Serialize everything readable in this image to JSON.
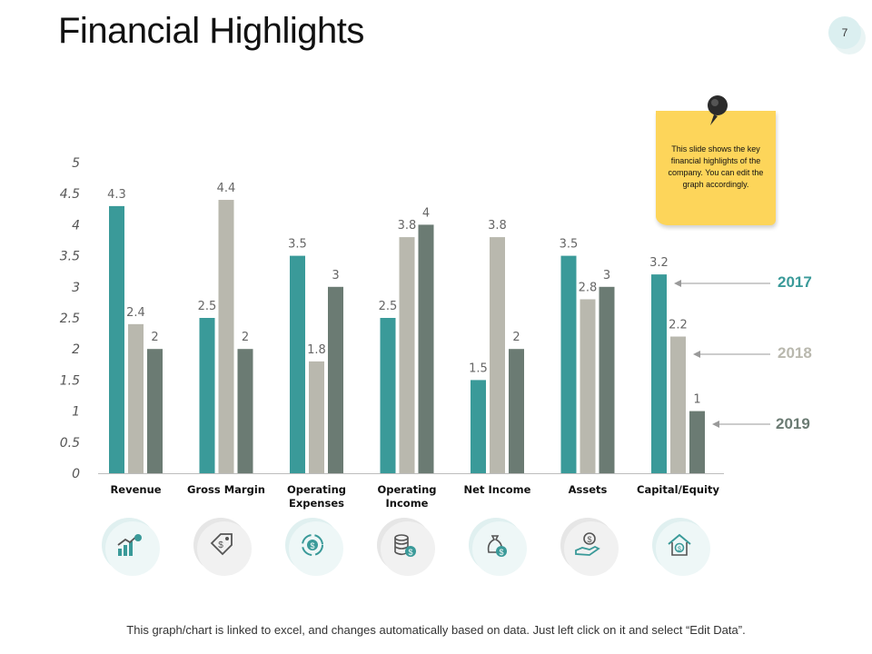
{
  "slide": {
    "title": "Financial Highlights",
    "page_number": "7",
    "footer": "This graph/chart is linked to excel, and changes automatically based on data. Just left click on it and select “Edit Data”.",
    "note": "This slide shows the key financial highlights of the company. You can edit the graph accordingly.",
    "year_labels": [
      "2017",
      "2018",
      "2019"
    ]
  },
  "colors": {
    "series_2017": "#3a9a99",
    "series_2018": "#b9b8ae",
    "series_2019": "#6b7b73",
    "axis_text": "#555555",
    "value_text": "#666666",
    "icon_circle_teal": "#e0f0f0",
    "icon_circle_gray": "#e6e6e6"
  },
  "icons": [
    "growth-chart-icon",
    "price-tag-icon",
    "cycle-dollar-icon",
    "coin-stack-icon",
    "money-bag-icon",
    "hand-dollar-icon",
    "house-dollar-icon"
  ],
  "chart_data": {
    "type": "bar",
    "categories": [
      "Revenue",
      "Gross Margin",
      "Operating Expenses",
      "Operating Income",
      "Net Income",
      "Assets",
      "Capital/Equity"
    ],
    "category_lines": [
      [
        "Revenue"
      ],
      [
        "Gross Margin"
      ],
      [
        "Operating",
        "Expenses"
      ],
      [
        "Operating",
        "Income"
      ],
      [
        "Net Income"
      ],
      [
        "Assets"
      ],
      [
        "Capital/Equity"
      ]
    ],
    "series": [
      {
        "name": "2017",
        "values": [
          4.3,
          2.5,
          3.5,
          2.5,
          1.5,
          3.5,
          3.2
        ]
      },
      {
        "name": "2018",
        "values": [
          2.4,
          4.4,
          1.8,
          3.8,
          3.8,
          2.8,
          2.2
        ]
      },
      {
        "name": "2019",
        "values": [
          2,
          2,
          3,
          4,
          2,
          3,
          1
        ]
      }
    ],
    "ylim": [
      0,
      5
    ],
    "yticks": [
      "0",
      "0.5",
      "1",
      "1.5",
      "2",
      "2.5",
      "3",
      "3.5",
      "4",
      "4.5",
      "5"
    ],
    "title": "",
    "xlabel": "",
    "ylabel": "",
    "grid": false,
    "legend": "right"
  }
}
